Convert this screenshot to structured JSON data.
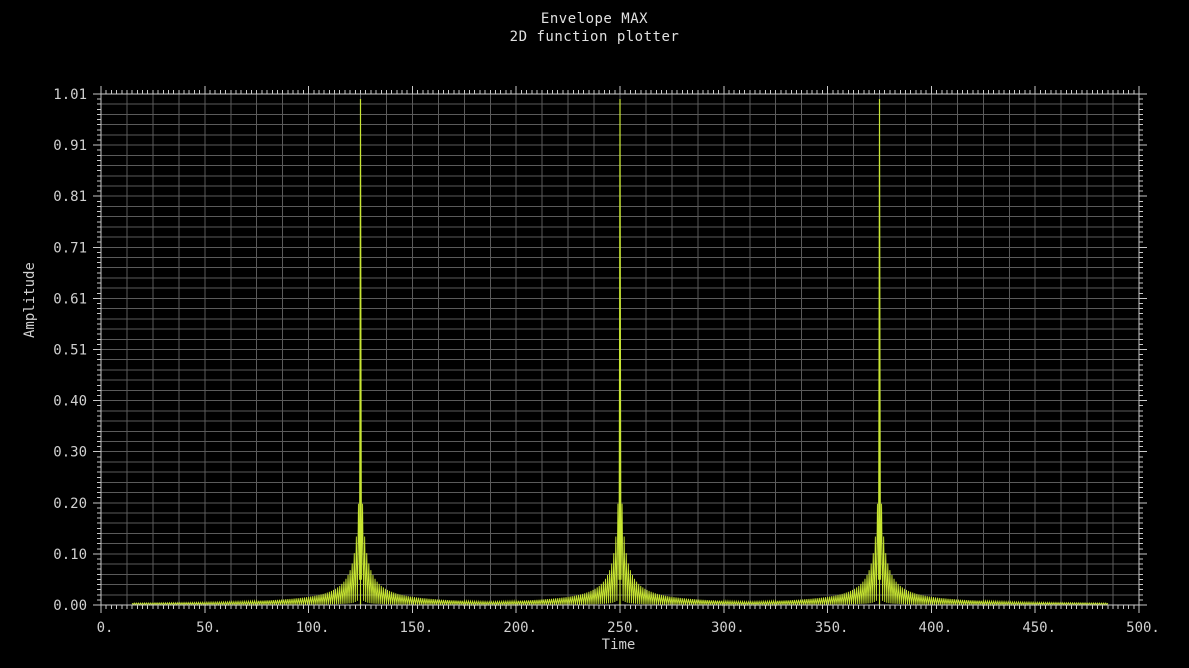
{
  "chart_data": {
    "type": "line",
    "title": "Envelope MAX",
    "subtitle": "2D function plotter",
    "xlabel": "Time",
    "ylabel": "Amplitude",
    "xlim": [
      0,
      500
    ],
    "ylim": [
      0,
      1.01
    ],
    "xticks": [
      "0.",
      "50.",
      "100.",
      "150.",
      "200.",
      "250.",
      "300.",
      "350.",
      "400.",
      "450.",
      "500."
    ],
    "yticks": [
      "0.00",
      "0.10",
      "0.20",
      "0.30",
      "0.40",
      "0.51",
      "0.61",
      "0.71",
      "0.81",
      "0.91",
      "1.01"
    ],
    "grid": true,
    "series": [
      {
        "color": "#c8e632",
        "peaks": [
          {
            "x": 125,
            "y": 1.0
          },
          {
            "x": 250,
            "y": 1.0
          },
          {
            "x": 375,
            "y": 1.0
          }
        ],
        "x_range": [
          15,
          485
        ]
      }
    ],
    "colors": {
      "background": "#000000",
      "grid": "#5a5a5a",
      "axis": "#c8c8c8",
      "line": "#c8e632"
    }
  }
}
